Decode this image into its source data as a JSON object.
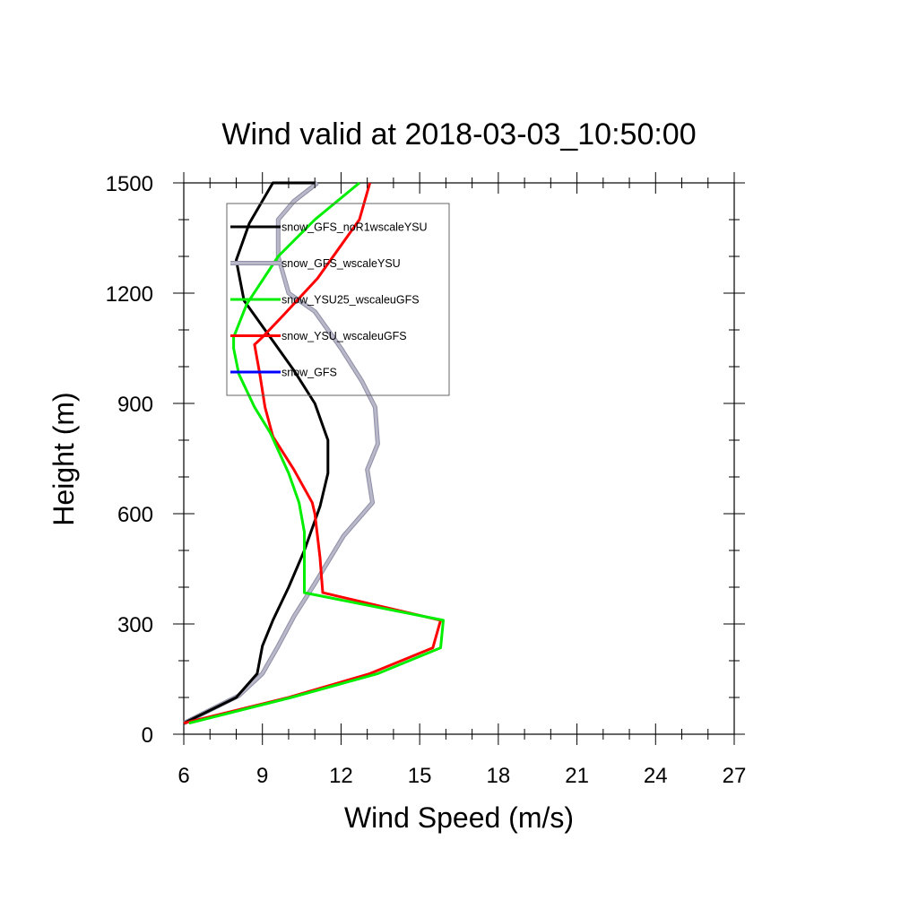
{
  "chart_data": {
    "type": "line",
    "title": "Wind valid at 2018-03-03_10:50:00",
    "xlabel": "Wind Speed (m/s)",
    "ylabel": "Height (m)",
    "xlim": [
      6,
      27
    ],
    "ylim": [
      0,
      1500
    ],
    "xticks": [
      6,
      9,
      12,
      15,
      18,
      21,
      24,
      27
    ],
    "yticks": [
      0,
      300,
      600,
      900,
      1200,
      1500
    ],
    "grid": false,
    "legend_position": "top-left",
    "series": [
      {
        "name": "snow_GFS_noR1wscaleYSU",
        "color": "#000000",
        "x": [
          6.0,
          8.0,
          8.8,
          9.0,
          9.4,
          10.0,
          10.6,
          11.2,
          11.5,
          11.5,
          11.0,
          10.2,
          9.3,
          8.3,
          8.0,
          8.5,
          9.4,
          11.0
        ],
        "y": [
          30,
          100,
          165,
          240,
          310,
          400,
          500,
          620,
          710,
          800,
          900,
          990,
          1080,
          1180,
          1290,
          1390,
          1500,
          1500
        ]
      },
      {
        "name": "snow_GFS_wscaleYSU",
        "color": "#b8b8c8",
        "x": [
          6.0,
          8.1,
          9.0,
          9.6,
          10.2,
          11.0,
          12.1,
          13.2,
          13.0,
          13.4,
          13.3,
          12.8,
          12.0,
          11.0,
          10.0,
          9.6,
          9.6,
          10.2,
          11.1
        ],
        "y": [
          30,
          105,
          165,
          240,
          320,
          410,
          540,
          630,
          720,
          790,
          890,
          960,
          1050,
          1150,
          1200,
          1300,
          1400,
          1450,
          1500
        ]
      },
      {
        "name": "snow_YSU25_wscaleuGFS",
        "color": "#00ee00",
        "x": [
          6.2,
          10.1,
          13.4,
          15.8,
          15.9,
          10.6,
          10.6,
          10.4,
          10.0,
          9.3,
          8.7,
          8.1,
          7.9,
          7.9,
          8.4,
          9.6,
          11.0,
          12.7
        ],
        "y": [
          30,
          100,
          165,
          235,
          310,
          385,
          550,
          630,
          710,
          820,
          890,
          980,
          1050,
          1080,
          1170,
          1300,
          1400,
          1500
        ]
      },
      {
        "name": "snow_YSU_wscaleuGFS",
        "color": "#ff0000",
        "x": [
          6.0,
          10.0,
          13.1,
          15.5,
          15.8,
          11.3,
          11.2,
          11.0,
          10.9,
          10.2,
          9.4,
          9.1,
          8.9,
          8.7,
          9.0,
          9.8,
          11.1,
          12.3,
          12.7,
          13.1
        ],
        "y": [
          30,
          100,
          165,
          235,
          310,
          385,
          480,
          600,
          630,
          720,
          810,
          890,
          980,
          1060,
          1080,
          1140,
          1240,
          1360,
          1400,
          1500
        ]
      },
      {
        "name": "snow_GFS",
        "color": "#0000ff",
        "x": [],
        "y": []
      }
    ]
  }
}
